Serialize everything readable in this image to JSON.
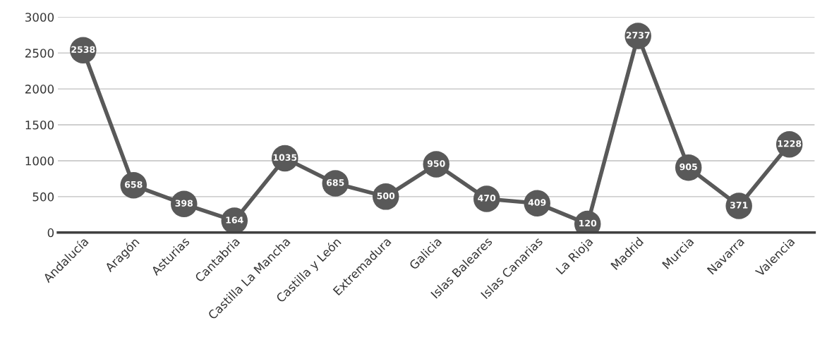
{
  "chart_data": {
    "type": "line",
    "categories": [
      "Andalucía",
      "Aragón",
      "Asturias",
      "Cantabria",
      "Castilla La Mancha",
      "Castilla y León",
      "Extremadura",
      "Galicia",
      "Islas Baleares",
      "Islas Canarias",
      "La Rioja",
      "Madrid",
      "Murcia",
      "Navarra",
      "Valencia"
    ],
    "series": [
      {
        "color": "#595959",
        "values": [
          2538,
          658,
          398,
          164,
          1035,
          685,
          500,
          950,
          470,
          409,
          120,
          2737,
          905,
          371,
          1228
        ]
      }
    ],
    "ylim": [
      0,
      3000
    ],
    "yticks": [
      0,
      500,
      1000,
      1500,
      2000,
      2500,
      3000
    ],
    "grid": "y",
    "marker": "circle",
    "line_style": "solid",
    "data_labels": true
  }
}
